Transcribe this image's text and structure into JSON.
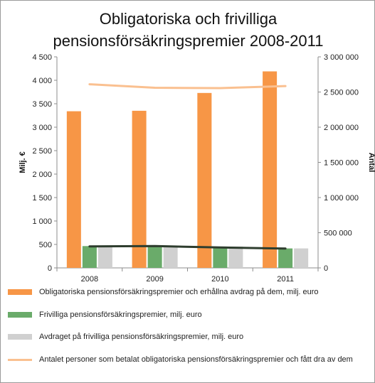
{
  "chart_data": {
    "type": "bar",
    "title_lines": [
      "Obligatoriska och frivilliga",
      "pensionsförsäkringspremier 2008-2011"
    ],
    "categories": [
      "2008",
      "2009",
      "2010",
      "2011"
    ],
    "ylabel": "Milj. €",
    "y2label": "Antal",
    "ylim": [
      0,
      4500
    ],
    "y2lim": [
      0,
      3000000
    ],
    "yticks": [
      "0",
      "500",
      "1 000",
      "1 500",
      "2 000",
      "2 500",
      "3 000",
      "3 500",
      "4 000",
      "4 500"
    ],
    "y2ticks": [
      "0",
      "500 000",
      "1 000 000",
      "1 500 000",
      "2 000 000",
      "2 500 000",
      "3 000 000"
    ],
    "grid": false,
    "legend_position": "bottom",
    "series": [
      {
        "name": "Obligatoriska pensionsförsäkringspremier och erhållna avdrag på dem, milj. euro",
        "kind": "bar",
        "axis": "left",
        "color": "#f79646",
        "values": [
          3340,
          3350,
          3730,
          4190
        ]
      },
      {
        "name": "Frivilliga pensionsförsäkringspremier, milj. euro",
        "kind": "bar",
        "axis": "left",
        "color": "#6aab6a",
        "values": [
          465,
          475,
          455,
          415
        ]
      },
      {
        "name": "Avdraget på frivilliga pensionsförsäkringspremier, milj. euro",
        "kind": "bar",
        "axis": "left",
        "color": "#d0d0d0",
        "values": [
          465,
          475,
          455,
          415
        ]
      },
      {
        "name": "Antalet personer som betalat obligatoriska pensionsförsäkringspremier och fått dra av dem",
        "kind": "line",
        "axis": "right",
        "color": "#fac090",
        "values": [
          2610000,
          2560000,
          2555000,
          2585000
        ]
      },
      {
        "name": "",
        "kind": "line",
        "axis": "right",
        "color": "#2e3d2e",
        "values": [
          305000,
          310000,
          290000,
          275000
        ]
      }
    ]
  }
}
